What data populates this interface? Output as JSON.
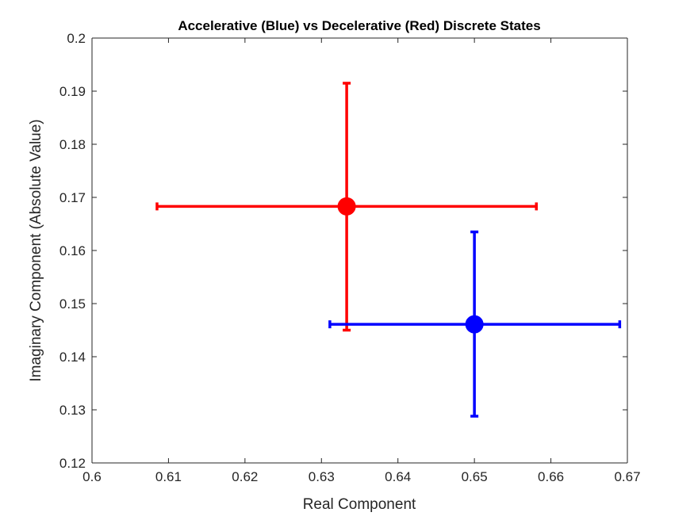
{
  "chart_data": {
    "type": "scatter",
    "title": "Accelerative (Blue) vs Decelerative (Red) Discrete States",
    "xlabel": "Real Component",
    "ylabel": "Imaginary Component (Absolute Value)",
    "xlim": [
      0.6,
      0.67
    ],
    "ylim": [
      0.12,
      0.2
    ],
    "x_ticks": [
      0.6,
      0.61,
      0.62,
      0.63,
      0.64,
      0.65,
      0.66,
      0.67
    ],
    "y_ticks": [
      0.12,
      0.13,
      0.14,
      0.15,
      0.16,
      0.17,
      0.18,
      0.19,
      0.2
    ],
    "x_tick_labels": [
      "0.6",
      "0.61",
      "0.62",
      "0.63",
      "0.64",
      "0.65",
      "0.66",
      "0.67"
    ],
    "y_tick_labels": [
      "0.12",
      "0.13",
      "0.14",
      "0.15",
      "0.16",
      "0.17",
      "0.18",
      "0.19",
      "0.2"
    ],
    "grid": false,
    "box": "top-right",
    "series": [
      {
        "color": "#ff0000",
        "x": 0.6333,
        "y": 0.1683,
        "x_err": [
          0.6085,
          0.6581
        ],
        "y_err": [
          0.145,
          0.1915
        ]
      },
      {
        "color": "#0000ff",
        "x": 0.65,
        "y": 0.1461,
        "x_err": [
          0.6311,
          0.669
        ],
        "y_err": [
          0.1288,
          0.1635
        ]
      }
    ]
  }
}
